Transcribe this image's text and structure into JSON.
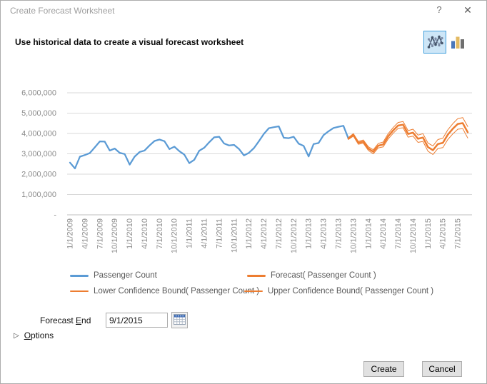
{
  "window": {
    "title": "Create Forecast Worksheet",
    "help_glyph": "?",
    "close_glyph": "✕"
  },
  "subtitle": "Use historical data to create a visual forecast worksheet",
  "chart_type_picker": {
    "selected": "line-chart",
    "options": [
      "line-chart",
      "bar-chart"
    ]
  },
  "forecast_end": {
    "label_pre": "Forecast ",
    "label_accel": "E",
    "label_post": "nd",
    "value": "9/1/2015"
  },
  "options": {
    "accel": "O",
    "rest": "ptions"
  },
  "buttons": {
    "create": "Create",
    "cancel": "Cancel"
  },
  "ui_colors": {
    "history_line": "#5B9BD5",
    "forecast_line": "#ED7D31",
    "gridline": "#D9D9D9",
    "axis_text": "#8C8C8C",
    "selected_chart_type_bg": "#CDE6F7",
    "selected_chart_type_border": "#41A0DC"
  },
  "chart_data": {
    "type": "line",
    "title": "",
    "xlabel": "",
    "ylabel": "",
    "ylim": [
      0,
      6000000
    ],
    "grid": true,
    "legend_position": "bottom",
    "y_tick_labels": [
      "6,000,000",
      "5,000,000",
      "4,000,000",
      "3,000,000",
      "2,000,000",
      "1,000,000",
      "-"
    ],
    "x_tick_labels": [
      "1/1/2009",
      "4/1/2009",
      "7/1/2009",
      "10/1/2009",
      "1/1/2010",
      "4/1/2010",
      "7/1/2010",
      "10/1/2010",
      "1/1/2011",
      "4/1/2011",
      "7/1/2011",
      "10/1/2011",
      "1/1/2012",
      "4/1/2012",
      "7/1/2012",
      "10/1/2012",
      "1/1/2013",
      "4/1/2013",
      "7/1/2013",
      "10/1/2013",
      "1/1/2014",
      "4/1/2014",
      "7/1/2014",
      "10/1/2014",
      "1/1/2015",
      "4/1/2015",
      "7/1/2015"
    ],
    "x_unit": "month",
    "months_total": 81,
    "series": [
      {
        "id": "passenger-count",
        "name": "Passenger Count",
        "color": "#5B9BD5",
        "width": 2.25,
        "start_month": 0,
        "values_millions": [
          2.57,
          2.28,
          2.86,
          2.94,
          3.04,
          3.32,
          3.61,
          3.6,
          3.16,
          3.26,
          3.05,
          2.99,
          2.47,
          2.86,
          3.09,
          3.16,
          3.41,
          3.63,
          3.7,
          3.62,
          3.23,
          3.35,
          3.13,
          2.96,
          2.54,
          2.71,
          3.15,
          3.3,
          3.57,
          3.81,
          3.84,
          3.51,
          3.41,
          3.44,
          3.24,
          2.92,
          3.05,
          3.28,
          3.62,
          3.98,
          4.26,
          4.31,
          4.35,
          3.79,
          3.77,
          3.84,
          3.5,
          3.39,
          2.87,
          3.48,
          3.53,
          3.92,
          4.11,
          4.27,
          4.33,
          4.38,
          3.75
        ]
      },
      {
        "id": "forecast",
        "name": "Forecast( Passenger Count )",
        "color": "#ED7D31",
        "width": 2.5,
        "start_month": 56,
        "values_millions": [
          3.75,
          3.93,
          3.54,
          3.6,
          3.26,
          3.1,
          3.4,
          3.46,
          3.86,
          4.15,
          4.39,
          4.43,
          3.98,
          4.04,
          3.74,
          3.8,
          3.33,
          3.18,
          3.48,
          3.54,
          3.94,
          4.23,
          4.47,
          4.51,
          4.06
        ]
      },
      {
        "id": "lower-confidence-bound",
        "name": "Lower Confidence Bound( Passenger Count )",
        "color": "#ED7D31",
        "width": 1,
        "start_month": 56,
        "values_millions": [
          3.7,
          3.87,
          3.47,
          3.52,
          3.17,
          3.0,
          3.29,
          3.34,
          3.73,
          4.01,
          4.25,
          4.28,
          3.82,
          3.87,
          3.56,
          3.61,
          3.13,
          2.97,
          3.26,
          3.31,
          3.7,
          3.98,
          4.21,
          4.24,
          3.78
        ]
      },
      {
        "id": "upper-confidence-bound",
        "name": "Upper Confidence Bound( Passenger Count )",
        "color": "#ED7D31",
        "width": 1,
        "start_month": 56,
        "values_millions": [
          3.8,
          3.99,
          3.61,
          3.68,
          3.35,
          3.2,
          3.51,
          3.58,
          3.99,
          4.29,
          4.54,
          4.59,
          4.14,
          4.21,
          3.92,
          3.99,
          3.53,
          3.39,
          3.7,
          3.77,
          4.18,
          4.48,
          4.73,
          4.78,
          4.34
        ]
      }
    ]
  }
}
